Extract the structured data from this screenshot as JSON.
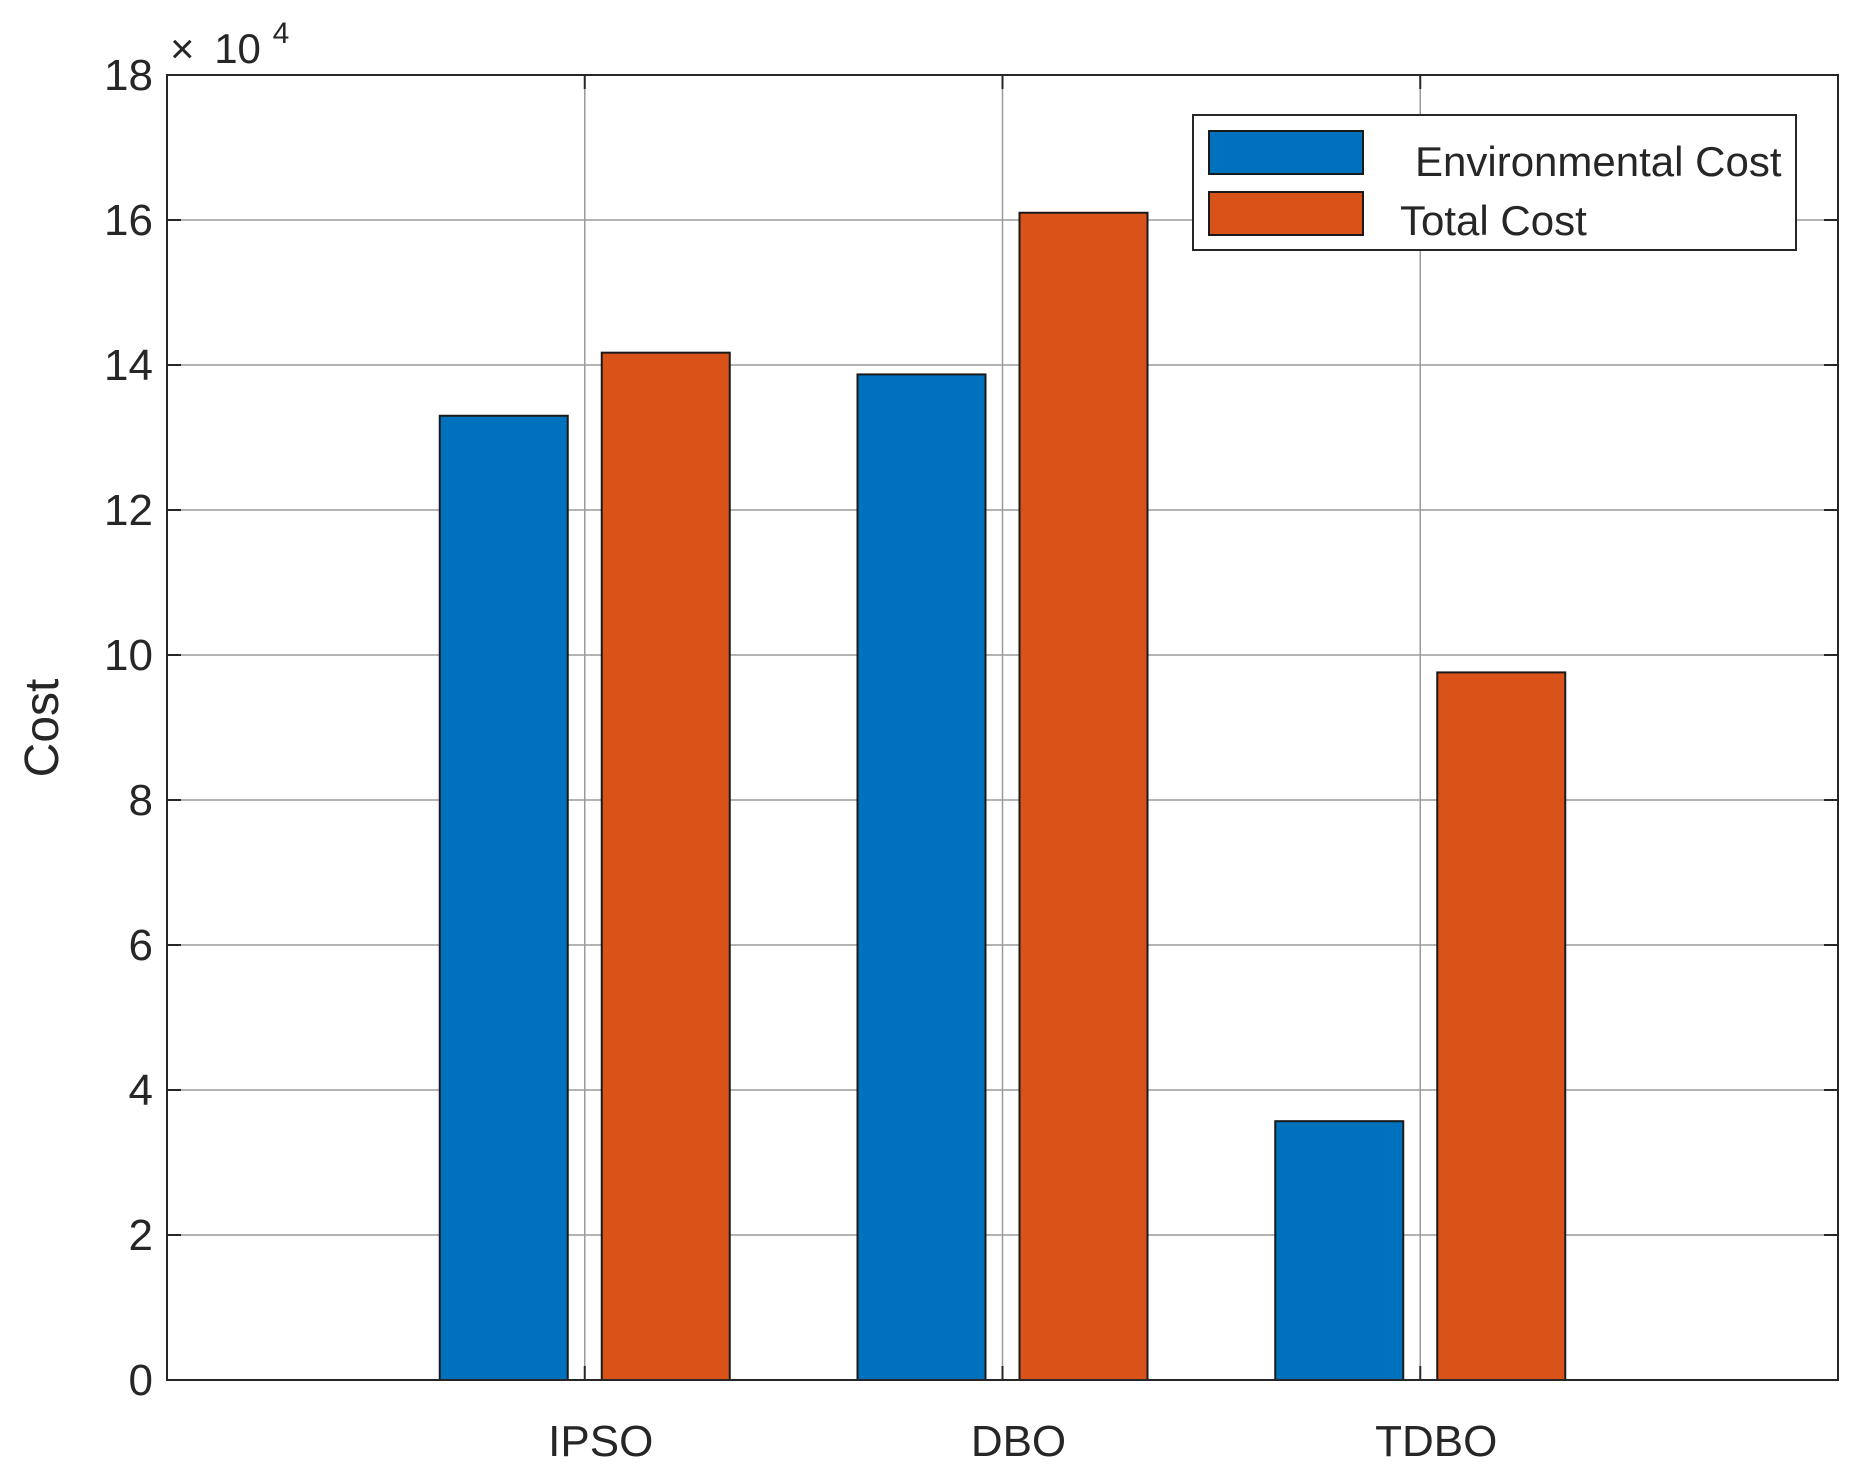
{
  "chart_data": {
    "type": "bar",
    "categories": [
      "IPSO",
      "DBO",
      "TDBO"
    ],
    "series": [
      {
        "name": "Environmental Cost",
        "values": [
          133000,
          138700,
          35700
        ],
        "color": "#0072BD"
      },
      {
        "name": "Total Cost",
        "values": [
          141700,
          161000,
          97600
        ],
        "color": "#D95319"
      }
    ],
    "title": "",
    "xlabel": "",
    "ylabel": "Cost",
    "ylim": [
      0,
      180000
    ],
    "yticks": [
      0,
      2,
      4,
      6,
      8,
      10,
      12,
      14,
      16,
      18
    ],
    "y_multiplier": {
      "symbol": "×",
      "base": "10",
      "exponent": "4",
      "value": 10000
    },
    "grid": true,
    "legend_position": "top-right"
  }
}
